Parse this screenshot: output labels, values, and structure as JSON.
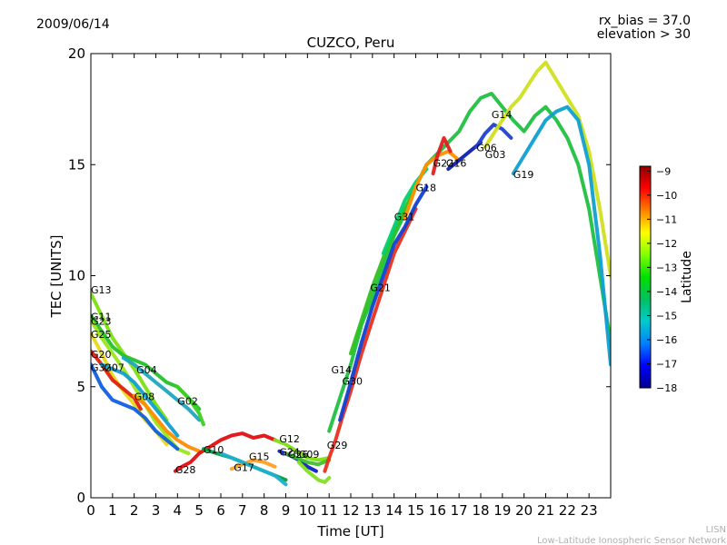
{
  "header": {
    "date": "2009/06/14",
    "bias_line": "rx_bias = 37.0",
    "elevation_line": "elevation > 30"
  },
  "footer": {
    "line1": "LISN",
    "line2": "Low-Latitude Ionospheric Sensor Network"
  },
  "chart_data": {
    "type": "line",
    "title": "CUZCO, Peru",
    "xlabel": "Time [UT]",
    "ylabel": "TEC [UNITS]",
    "xlim": [
      0,
      24
    ],
    "ylim": [
      0,
      20
    ],
    "x_ticks": [
      "0",
      "1",
      "2",
      "3",
      "4",
      "5",
      "6",
      "7",
      "8",
      "9",
      "10",
      "11",
      "12",
      "13",
      "14",
      "15",
      "16",
      "17",
      "18",
      "19",
      "20",
      "21",
      "22",
      "23"
    ],
    "y_ticks": [
      "0",
      "5",
      "10",
      "15",
      "20"
    ],
    "grid": false,
    "colorbar": {
      "label": "Latitude",
      "range": [
        -18,
        -8.8
      ],
      "ticks": [
        "-9",
        "-10",
        "-11",
        "-12",
        "-13",
        "-14",
        "-15",
        "-16",
        "-17",
        "-18"
      ],
      "colormap": [
        "#00008f",
        "#0000ff",
        "#0080ff",
        "#00cccc",
        "#00c060",
        "#00e000",
        "#80ff00",
        "#ffff00",
        "#ff8000",
        "#ff0000",
        "#8f0000"
      ]
    },
    "series": [
      {
        "name": "G13",
        "color": "#7ce010",
        "points": [
          [
            0,
            9.2
          ],
          [
            0.5,
            8.2
          ],
          [
            1,
            7.2
          ],
          [
            1.5,
            6.5
          ],
          [
            2,
            5.8
          ],
          [
            2.5,
            5.0
          ],
          [
            3,
            4.2
          ],
          [
            3.5,
            3.5
          ]
        ]
      },
      {
        "name": "G11",
        "color": "#22c22a",
        "points": [
          [
            0,
            8.2
          ],
          [
            0.5,
            7.5
          ],
          [
            1,
            6.8
          ],
          [
            1.5,
            6.4
          ],
          [
            2,
            6.2
          ],
          [
            2.5,
            6.0
          ],
          [
            3,
            5.6
          ],
          [
            3.5,
            5.2
          ],
          [
            4,
            5.0
          ],
          [
            4.5,
            4.5
          ],
          [
            5,
            4.0
          ]
        ]
      },
      {
        "name": "G23",
        "color": "#9be61a",
        "points": [
          [
            0,
            8.0
          ],
          [
            0.5,
            7.2
          ],
          [
            1,
            6.5
          ],
          [
            1.5,
            5.8
          ],
          [
            2,
            5.0
          ],
          [
            2.5,
            4.2
          ],
          [
            3,
            3.4
          ],
          [
            3.5,
            2.8
          ],
          [
            4,
            2.2
          ],
          [
            4.5,
            2.0
          ]
        ]
      },
      {
        "name": "G25",
        "color": "#e8d81c",
        "points": [
          [
            0,
            7.4
          ],
          [
            0.5,
            6.5
          ],
          [
            1,
            5.5
          ],
          [
            1.5,
            4.8
          ],
          [
            2,
            4.2
          ],
          [
            2.5,
            3.5
          ],
          [
            3,
            3.0
          ],
          [
            3.5,
            2.4
          ]
        ]
      },
      {
        "name": "G20",
        "color": "#e02010",
        "points": [
          [
            0,
            6.6
          ],
          [
            0.5,
            6.0
          ],
          [
            1,
            5.3
          ],
          [
            1.5,
            4.9
          ],
          [
            2,
            4.5
          ],
          [
            2.3,
            4.0
          ]
        ]
      },
      {
        "name": "G32",
        "color": "#1060e0",
        "points": [
          [
            0,
            6.0
          ],
          [
            0.5,
            5.0
          ],
          [
            1,
            4.4
          ],
          [
            1.5,
            4.2
          ],
          [
            2,
            4.0
          ],
          [
            2.5,
            3.6
          ],
          [
            3,
            3.0
          ],
          [
            3.5,
            2.6
          ],
          [
            4,
            2.2
          ]
        ]
      },
      {
        "name": "G07",
        "color": "#10a0d0",
        "points": [
          [
            0.5,
            6.0
          ],
          [
            1,
            5.8
          ],
          [
            1.5,
            5.6
          ],
          [
            2,
            5.2
          ],
          [
            2.5,
            4.6
          ],
          [
            3,
            4.0
          ],
          [
            3.5,
            3.4
          ],
          [
            4,
            2.8
          ]
        ]
      },
      {
        "name": "G04",
        "color": "#1ca6c0",
        "points": [
          [
            1.5,
            6.3
          ],
          [
            2,
            6.0
          ],
          [
            2.5,
            5.6
          ],
          [
            3,
            5.2
          ],
          [
            3.5,
            4.8
          ],
          [
            4,
            4.4
          ],
          [
            4.5,
            4.0
          ],
          [
            5,
            3.5
          ]
        ]
      },
      {
        "name": "G08",
        "color": "#ff8c00",
        "points": [
          [
            2,
            4.6
          ],
          [
            2.5,
            4.2
          ],
          [
            3,
            3.6
          ],
          [
            3.5,
            3.0
          ],
          [
            4,
            2.6
          ],
          [
            4.5,
            2.3
          ],
          [
            5,
            2.1
          ]
        ]
      },
      {
        "name": "G02",
        "color": "#3cd020",
        "points": [
          [
            4,
            5.0
          ],
          [
            4.5,
            4.5
          ],
          [
            5,
            3.8
          ],
          [
            5.2,
            3.3
          ]
        ]
      },
      {
        "name": "G28",
        "color": "#e01010",
        "points": [
          [
            3.9,
            1.2
          ],
          [
            4.2,
            1.4
          ],
          [
            4.6,
            1.6
          ],
          [
            5,
            2.0
          ],
          [
            5.5,
            2.3
          ],
          [
            6,
            2.6
          ],
          [
            6.5,
            2.8
          ],
          [
            7,
            2.9
          ],
          [
            7.5,
            2.7
          ],
          [
            8,
            2.8
          ],
          [
            8.5,
            2.6
          ]
        ]
      },
      {
        "name": "G10",
        "color": "#00a040",
        "points": [
          [
            5.2,
            2.2
          ],
          [
            5.8,
            2.0
          ],
          [
            6.5,
            1.8
          ],
          [
            7,
            1.6
          ],
          [
            7.5,
            1.4
          ],
          [
            8,
            1.2
          ],
          [
            8.5,
            1.0
          ],
          [
            9,
            0.8
          ]
        ]
      },
      {
        "name": "G17",
        "color": "#ffa020",
        "points": [
          [
            6.5,
            1.3
          ],
          [
            7,
            1.5
          ],
          [
            7.5,
            1.7
          ],
          [
            8,
            1.6
          ],
          [
            8.5,
            1.4
          ]
        ]
      },
      {
        "name": "G15",
        "color": "#20b0d0",
        "points": [
          [
            6,
            2.0
          ],
          [
            6.5,
            1.8
          ],
          [
            7,
            1.6
          ],
          [
            7.5,
            1.4
          ],
          [
            8,
            1.2
          ],
          [
            8.5,
            1.0
          ],
          [
            9,
            0.6
          ]
        ]
      },
      {
        "name": "G12",
        "color": "#7ce010",
        "points": [
          [
            8.5,
            2.6
          ],
          [
            9,
            2.4
          ],
          [
            9.5,
            2.1
          ],
          [
            10,
            1.8
          ],
          [
            10.5,
            1.7
          ],
          [
            11,
            1.8
          ]
        ]
      },
      {
        "name": "G24",
        "color": "#1020c0",
        "points": [
          [
            8.7,
            2.1
          ],
          [
            9.2,
            1.9
          ],
          [
            9.6,
            1.7
          ],
          [
            10,
            1.4
          ],
          [
            10.4,
            1.2
          ]
        ]
      },
      {
        "name": "G26",
        "color": "#40c030",
        "points": [
          [
            9,
            2.0
          ],
          [
            9.5,
            1.8
          ],
          [
            10,
            1.6
          ],
          [
            10.5,
            1.5
          ],
          [
            11,
            1.7
          ]
        ]
      },
      {
        "name": "G09",
        "color": "#80e020",
        "points": [
          [
            9.6,
            1.6
          ],
          [
            10,
            1.2
          ],
          [
            10.5,
            0.8
          ],
          [
            10.8,
            0.7
          ],
          [
            11,
            0.9
          ]
        ]
      },
      {
        "name": "G29",
        "color": "#e83020",
        "points": [
          [
            10.8,
            1.2
          ],
          [
            11,
            1.8
          ],
          [
            11.3,
            2.6
          ],
          [
            11.6,
            3.6
          ],
          [
            12,
            4.8
          ],
          [
            12.5,
            6.5
          ],
          [
            13,
            8.0
          ],
          [
            13.5,
            9.5
          ],
          [
            14,
            11.0
          ],
          [
            14.5,
            12.0
          ],
          [
            15,
            13.0
          ]
        ]
      },
      {
        "name": "G14",
        "color": "#20c040",
        "points": [
          [
            11,
            3.0
          ],
          [
            11.5,
            4.5
          ],
          [
            12,
            6.0
          ],
          [
            12.5,
            7.8
          ],
          [
            13,
            9.0
          ],
          [
            13.5,
            10.4
          ],
          [
            14,
            11.8
          ],
          [
            14.5,
            12.8
          ],
          [
            15,
            14.0
          ],
          [
            15.5,
            15.0
          ],
          [
            16,
            15.5
          ],
          [
            16.5,
            16.0
          ],
          [
            17,
            16.5
          ],
          [
            17.5,
            17.4
          ],
          [
            18,
            18.0
          ],
          [
            18.5,
            18.2
          ],
          [
            19,
            17.6
          ],
          [
            19.5,
            17.0
          ],
          [
            20,
            16.5
          ],
          [
            20.5,
            17.2
          ],
          [
            21,
            17.6
          ],
          [
            21.5,
            17.0
          ],
          [
            22,
            16.2
          ],
          [
            22.5,
            15.0
          ],
          [
            23,
            13.0
          ],
          [
            23.5,
            10.0
          ],
          [
            24,
            7.0
          ]
        ]
      },
      {
        "name": "G30",
        "color": "#1040d0",
        "points": [
          [
            11.5,
            3.5
          ],
          [
            12,
            5.2
          ],
          [
            12.5,
            7.0
          ],
          [
            13,
            8.6
          ],
          [
            13.5,
            10.0
          ],
          [
            14,
            11.4
          ],
          [
            14.5,
            12.2
          ],
          [
            15,
            13.2
          ],
          [
            15.5,
            14.0
          ]
        ]
      },
      {
        "name": "G21",
        "color": "#30c020",
        "points": [
          [
            12,
            6.5
          ],
          [
            12.5,
            8.0
          ],
          [
            13,
            9.5
          ],
          [
            13.5,
            10.8
          ],
          [
            14,
            12.0
          ],
          [
            14.5,
            13.0
          ],
          [
            15,
            14.0
          ]
        ]
      },
      {
        "name": "G31",
        "color": "#00d070",
        "points": [
          [
            13.5,
            11.0
          ],
          [
            14,
            12.2
          ],
          [
            14.5,
            13.4
          ],
          [
            15,
            14.2
          ],
          [
            15.5,
            14.8
          ]
        ]
      },
      {
        "name": "G18",
        "color": "#ff9000",
        "points": [
          [
            14.5,
            12.6
          ],
          [
            15,
            14.0
          ],
          [
            15.5,
            15.0
          ],
          [
            16,
            15.4
          ],
          [
            16.5,
            15.6
          ],
          [
            17,
            15.2
          ]
        ]
      },
      {
        "name": "G22",
        "color": "#e02020",
        "points": [
          [
            15.8,
            14.6
          ],
          [
            16,
            15.4
          ],
          [
            16.3,
            16.2
          ],
          [
            16.6,
            15.6
          ]
        ]
      },
      {
        "name": "G16",
        "color": "#1020b0",
        "points": [
          [
            16.5,
            14.8
          ],
          [
            17,
            15.2
          ],
          [
            17.5,
            15.6
          ],
          [
            18,
            16.0
          ]
        ]
      },
      {
        "name": "G06",
        "color": "#2040d0",
        "points": [
          [
            17.8,
            15.8
          ],
          [
            18.2,
            16.4
          ],
          [
            18.6,
            16.8
          ],
          [
            19,
            16.6
          ],
          [
            19.4,
            16.2
          ]
        ]
      },
      {
        "name": "G03",
        "color": "#d0e020",
        "points": [
          [
            18.2,
            15.8
          ],
          [
            18.6,
            16.4
          ],
          [
            19,
            17.0
          ],
          [
            19.4,
            17.6
          ],
          [
            19.8,
            18.0
          ],
          [
            20.2,
            18.6
          ],
          [
            20.6,
            19.2
          ],
          [
            21,
            19.6
          ],
          [
            21.5,
            18.8
          ],
          [
            22,
            18.0
          ],
          [
            22.5,
            17.2
          ],
          [
            23,
            15.6
          ],
          [
            23.5,
            13.0
          ],
          [
            24,
            10.0
          ]
        ]
      },
      {
        "name": "G19",
        "color": "#10a0d0",
        "points": [
          [
            19.5,
            14.6
          ],
          [
            20,
            15.4
          ],
          [
            20.5,
            16.2
          ],
          [
            21,
            17.0
          ],
          [
            21.5,
            17.4
          ],
          [
            22,
            17.6
          ],
          [
            22.5,
            17.0
          ],
          [
            23,
            15.0
          ],
          [
            23.5,
            11.0
          ],
          [
            24,
            6.0
          ]
        ]
      }
    ],
    "labels": [
      {
        "text": "G13",
        "x": 0,
        "y": 9.2
      },
      {
        "text": "G11",
        "x": 0,
        "y": 8.0
      },
      {
        "text": "G23",
        "x": 0,
        "y": 7.8
      },
      {
        "text": "G25",
        "x": 0,
        "y": 7.2
      },
      {
        "text": "G20",
        "x": 0,
        "y": 6.3
      },
      {
        "text": "G32",
        "x": 0,
        "y": 5.7
      },
      {
        "text": "G07",
        "x": 0.6,
        "y": 5.7
      },
      {
        "text": "G04",
        "x": 2.1,
        "y": 5.6
      },
      {
        "text": "G08",
        "x": 2.0,
        "y": 4.4
      },
      {
        "text": "G02",
        "x": 4.0,
        "y": 4.2
      },
      {
        "text": "G28",
        "x": 3.9,
        "y": 1.1
      },
      {
        "text": "G10",
        "x": 5.2,
        "y": 2.0
      },
      {
        "text": "G15",
        "x": 7.3,
        "y": 1.7
      },
      {
        "text": "G17",
        "x": 6.6,
        "y": 1.2
      },
      {
        "text": "G12",
        "x": 8.7,
        "y": 2.5
      },
      {
        "text": "G24",
        "x": 8.7,
        "y": 1.9
      },
      {
        "text": "G26",
        "x": 9.1,
        "y": 1.8
      },
      {
        "text": "G09",
        "x": 9.6,
        "y": 1.8
      },
      {
        "text": "G29",
        "x": 10.9,
        "y": 2.2
      },
      {
        "text": "G14",
        "x": 11.1,
        "y": 5.6
      },
      {
        "text": "G30",
        "x": 11.6,
        "y": 5.1
      },
      {
        "text": "G21",
        "x": 12.9,
        "y": 9.3
      },
      {
        "text": "G31",
        "x": 14.0,
        "y": 12.5
      },
      {
        "text": "G18",
        "x": 15.0,
        "y": 13.8
      },
      {
        "text": "G22",
        "x": 15.8,
        "y": 14.9
      },
      {
        "text": "G16",
        "x": 16.4,
        "y": 14.9
      },
      {
        "text": "G14",
        "x": 18.5,
        "y": 17.1
      },
      {
        "text": "G06",
        "x": 17.8,
        "y": 15.6
      },
      {
        "text": "G03",
        "x": 18.2,
        "y": 15.3
      },
      {
        "text": "G19",
        "x": 19.5,
        "y": 14.4
      }
    ]
  }
}
